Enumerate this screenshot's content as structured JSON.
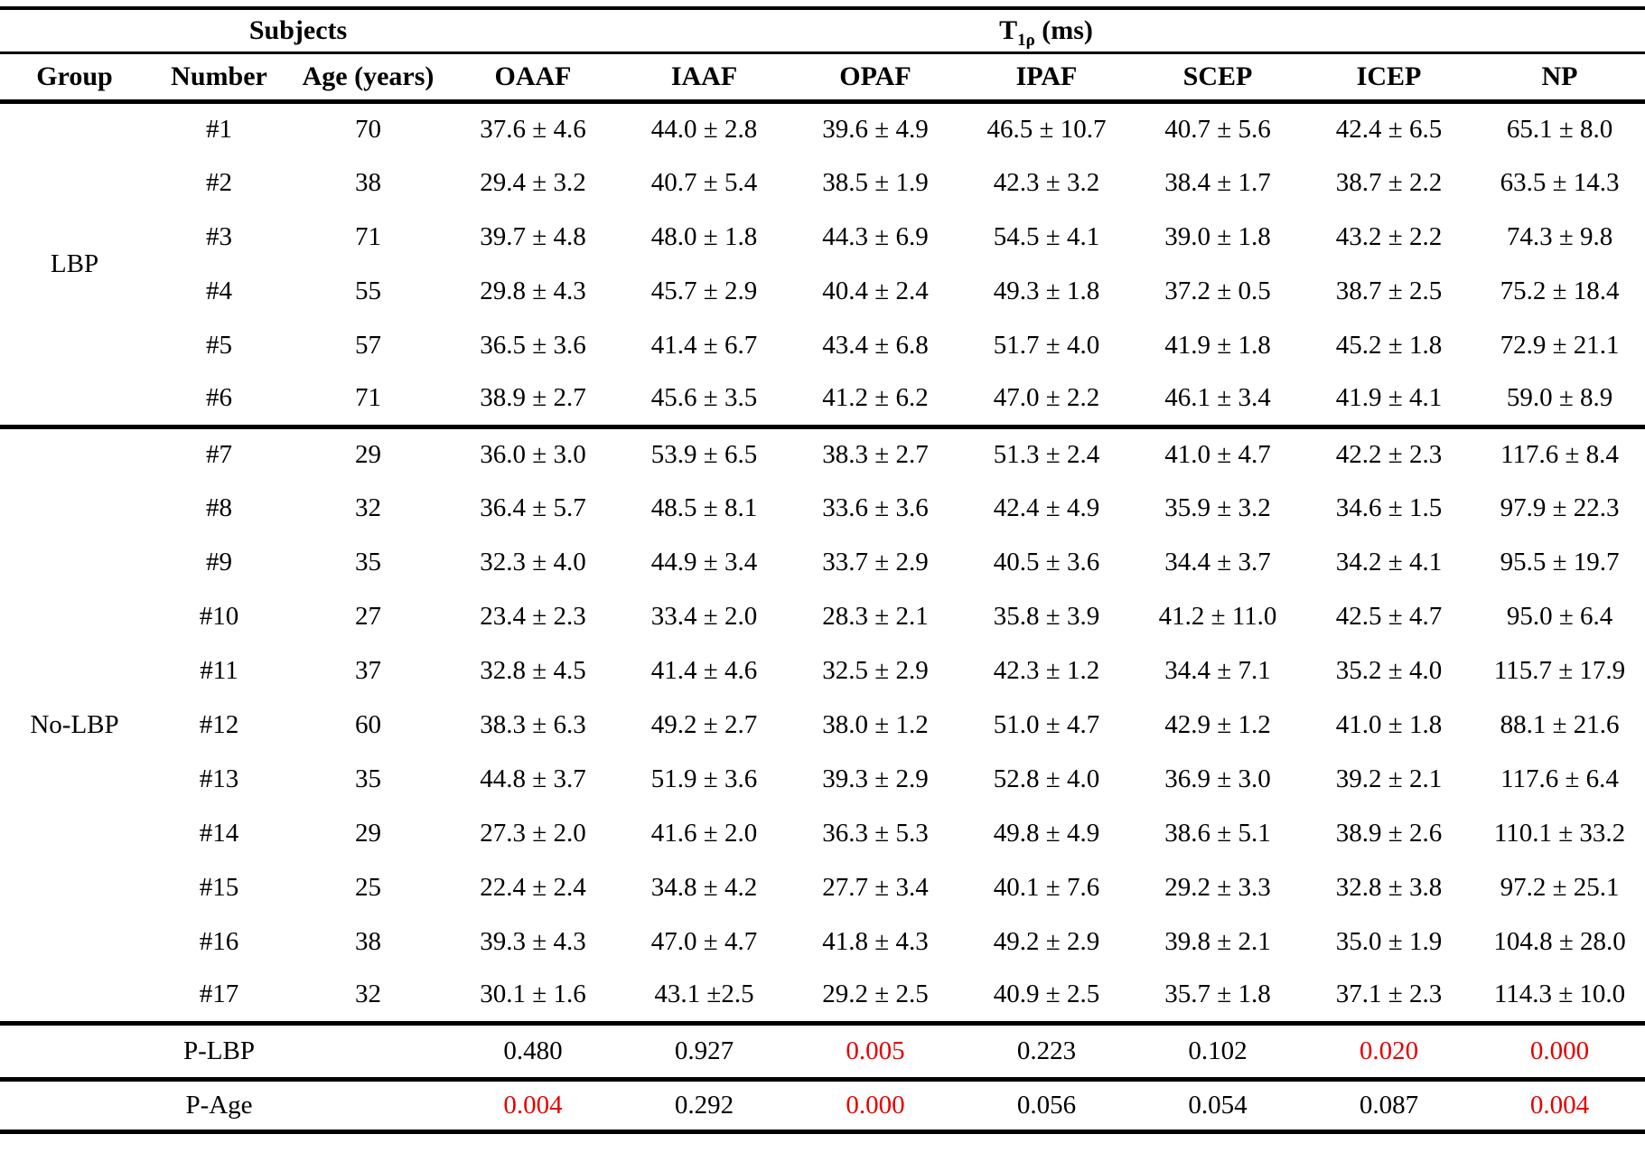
{
  "header": {
    "subjects": "Subjects",
    "t1rho": {
      "base": "T",
      "sub": "1ρ",
      "unit": " (ms)"
    },
    "columns": [
      "Group",
      "Number",
      "Age (years)",
      "OAAF",
      "IAAF",
      "OPAF",
      "IPAF",
      "SCEP",
      "ICEP",
      "NP"
    ]
  },
  "groups": [
    {
      "label": "LBP",
      "rows": [
        {
          "number": "#1",
          "age": "70",
          "values": [
            "37.6 ± 4.6",
            "44.0 ± 2.8",
            "39.6 ± 4.9",
            "46.5 ± 10.7",
            "40.7 ± 5.6",
            "42.4 ± 6.5",
            "65.1 ± 8.0"
          ]
        },
        {
          "number": "#2",
          "age": "38",
          "values": [
            "29.4 ± 3.2",
            "40.7 ± 5.4",
            "38.5 ± 1.9",
            "42.3 ± 3.2",
            "38.4 ± 1.7",
            "38.7 ± 2.2",
            "63.5 ± 14.3"
          ]
        },
        {
          "number": "#3",
          "age": "71",
          "values": [
            "39.7 ± 4.8",
            "48.0 ± 1.8",
            "44.3 ± 6.9",
            "54.5 ± 4.1",
            "39.0 ± 1.8",
            "43.2 ± 2.2",
            "74.3 ± 9.8"
          ]
        },
        {
          "number": "#4",
          "age": "55",
          "values": [
            "29.8 ± 4.3",
            "45.7 ± 2.9",
            "40.4 ± 2.4",
            "49.3 ± 1.8",
            "37.2 ± 0.5",
            "38.7 ± 2.5",
            "75.2 ± 18.4"
          ]
        },
        {
          "number": "#5",
          "age": "57",
          "values": [
            "36.5 ± 3.6",
            "41.4 ± 6.7",
            "43.4 ± 6.8",
            "51.7 ± 4.0",
            "41.9 ± 1.8",
            "45.2 ± 1.8",
            "72.9 ± 21.1"
          ]
        },
        {
          "number": "#6",
          "age": "71",
          "values": [
            "38.9 ± 2.7",
            "45.6 ± 3.5",
            "41.2 ± 6.2",
            "47.0 ± 2.2",
            "46.1 ± 3.4",
            "41.9 ± 4.1",
            "59.0 ± 8.9"
          ]
        }
      ]
    },
    {
      "label": "No-LBP",
      "rows": [
        {
          "number": "#7",
          "age": "29",
          "values": [
            "36.0 ± 3.0",
            "53.9 ± 6.5",
            "38.3 ± 2.7",
            "51.3 ± 2.4",
            "41.0 ± 4.7",
            "42.2 ± 2.3",
            "117.6 ± 8.4"
          ]
        },
        {
          "number": "#8",
          "age": "32",
          "values": [
            "36.4 ± 5.7",
            "48.5 ± 8.1",
            "33.6 ± 3.6",
            "42.4 ± 4.9",
            "35.9 ± 3.2",
            "34.6 ± 1.5",
            "97.9 ± 22.3"
          ]
        },
        {
          "number": "#9",
          "age": "35",
          "values": [
            "32.3 ± 4.0",
            "44.9 ± 3.4",
            "33.7 ± 2.9",
            "40.5 ± 3.6",
            "34.4 ± 3.7",
            "34.2 ± 4.1",
            "95.5 ± 19.7"
          ]
        },
        {
          "number": "#10",
          "age": "27",
          "values": [
            "23.4 ± 2.3",
            "33.4 ± 2.0",
            "28.3 ± 2.1",
            "35.8 ± 3.9",
            "41.2 ± 11.0",
            "42.5 ± 4.7",
            "95.0 ± 6.4"
          ]
        },
        {
          "number": "#11",
          "age": "37",
          "values": [
            "32.8 ± 4.5",
            "41.4 ± 4.6",
            "32.5 ± 2.9",
            "42.3 ± 1.2",
            "34.4 ± 7.1",
            "35.2 ± 4.0",
            "115.7 ± 17.9"
          ]
        },
        {
          "number": "#12",
          "age": "60",
          "values": [
            "38.3 ± 6.3",
            "49.2 ± 2.7",
            "38.0 ± 1.2",
            "51.0 ± 4.7",
            "42.9 ± 1.2",
            "41.0 ± 1.8",
            "88.1 ± 21.6"
          ]
        },
        {
          "number": "#13",
          "age": "35",
          "values": [
            "44.8 ± 3.7",
            "51.9 ± 3.6",
            "39.3 ± 2.9",
            "52.8 ± 4.0",
            "36.9 ± 3.0",
            "39.2 ± 2.1",
            "117.6 ± 6.4"
          ]
        },
        {
          "number": "#14",
          "age": "29",
          "values": [
            "27.3 ± 2.0",
            "41.6 ± 2.0",
            "36.3 ± 5.3",
            "49.8 ± 4.9",
            "38.6 ± 5.1",
            "38.9 ± 2.6",
            "110.1 ± 33.2"
          ]
        },
        {
          "number": "#15",
          "age": "25",
          "values": [
            "22.4 ± 2.4",
            "34.8 ± 4.2",
            "27.7 ± 3.4",
            "40.1 ± 7.6",
            "29.2 ± 3.3",
            "32.8 ± 3.8",
            "97.2 ± 25.1"
          ]
        },
        {
          "number": "#16",
          "age": "38",
          "values": [
            "39.3 ± 4.3",
            "47.0 ± 4.7",
            "41.8 ± 4.3",
            "49.2 ± 2.9",
            "39.8 ± 2.1",
            "35.0 ± 1.9",
            "104.8 ± 28.0"
          ]
        },
        {
          "number": "#17",
          "age": "32",
          "values": [
            "30.1 ± 1.6",
            "43.1 ±2.5",
            "29.2 ± 2.5",
            "40.9 ± 2.5",
            "35.7 ± 1.8",
            "37.1 ± 2.3",
            "114.3 ± 10.0"
          ]
        }
      ]
    }
  ],
  "p_rows": [
    {
      "label": "P-LBP",
      "values": [
        {
          "text": "0.480",
          "significant": false
        },
        {
          "text": "0.927",
          "significant": false
        },
        {
          "text": "0.005",
          "significant": true
        },
        {
          "text": "0.223",
          "significant": false
        },
        {
          "text": "0.102",
          "significant": false
        },
        {
          "text": "0.020",
          "significant": true
        },
        {
          "text": "0.000",
          "significant": true
        }
      ]
    },
    {
      "label": "P-Age",
      "values": [
        {
          "text": "0.004",
          "significant": true
        },
        {
          "text": "0.292",
          "significant": false
        },
        {
          "text": "0.000",
          "significant": true
        },
        {
          "text": "0.056",
          "significant": false
        },
        {
          "text": "0.054",
          "significant": false
        },
        {
          "text": "0.087",
          "significant": false
        },
        {
          "text": "0.004",
          "significant": true
        }
      ]
    }
  ],
  "colors": {
    "significant_red": "#e60000",
    "text": "#000000",
    "background": "#ffffff"
  }
}
